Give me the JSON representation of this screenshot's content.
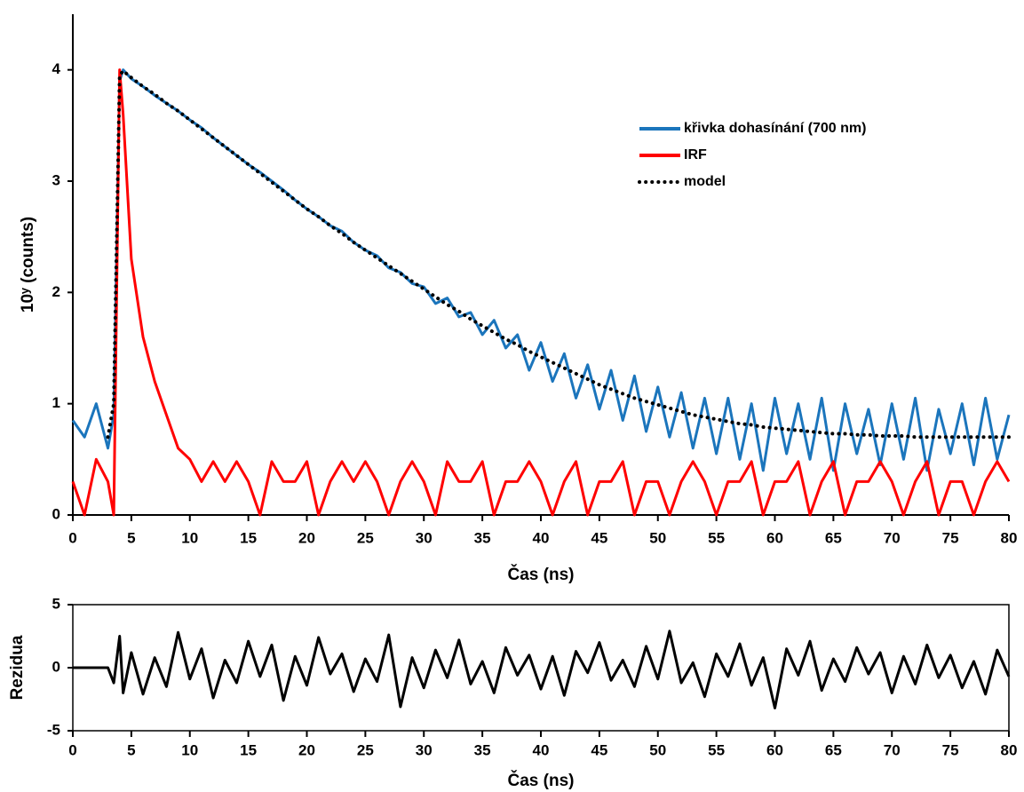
{
  "chart_data": [
    {
      "type": "line",
      "xlabel": "Čas (ns)",
      "ylabel": "10ʸ (counts)",
      "x": [
        0,
        1,
        2,
        3,
        3.5,
        4,
        4.3,
        5,
        6,
        7,
        8,
        9,
        10,
        11,
        12,
        13,
        14,
        15,
        16,
        17,
        18,
        19,
        20,
        21,
        22,
        23,
        24,
        25,
        26,
        27,
        28,
        29,
        30,
        31,
        32,
        33,
        34,
        35,
        36,
        37,
        38,
        39,
        40,
        41,
        42,
        43,
        44,
        45,
        46,
        47,
        48,
        49,
        50,
        51,
        52,
        53,
        54,
        55,
        56,
        57,
        58,
        59,
        60,
        61,
        62,
        63,
        64,
        65,
        66,
        67,
        68,
        69,
        70,
        71,
        72,
        73,
        74,
        75,
        76,
        77,
        78,
        79,
        80
      ],
      "xlim": [
        0,
        80
      ],
      "xticks": [
        0,
        5,
        10,
        15,
        20,
        25,
        30,
        35,
        40,
        45,
        50,
        55,
        60,
        65,
        70,
        75,
        80
      ],
      "ylim": [
        0,
        4.5
      ],
      "yticks": [
        0,
        1,
        2,
        3,
        4
      ],
      "grid": false,
      "frame": false,
      "legend": "upper right",
      "series": [
        {
          "name": "křivka dohasínání (700 nm)",
          "color": "#1b75bc",
          "style": "solid",
          "values": [
            0.85,
            0.7,
            1.0,
            0.6,
            0.9,
            3.9,
            4.0,
            3.92,
            3.85,
            3.77,
            3.7,
            3.63,
            3.55,
            3.48,
            3.39,
            3.31,
            3.23,
            3.15,
            3.08,
            3.0,
            2.92,
            2.83,
            2.75,
            2.68,
            2.6,
            2.55,
            2.45,
            2.38,
            2.33,
            2.22,
            2.18,
            2.08,
            2.05,
            1.9,
            1.95,
            1.78,
            1.82,
            1.62,
            1.75,
            1.5,
            1.62,
            1.3,
            1.55,
            1.2,
            1.45,
            1.05,
            1.35,
            0.95,
            1.3,
            0.85,
            1.25,
            0.75,
            1.15,
            0.7,
            1.1,
            0.6,
            1.05,
            0.55,
            1.05,
            0.5,
            1.0,
            0.4,
            1.05,
            0.55,
            1.0,
            0.5,
            1.05,
            0.4,
            1.0,
            0.55,
            0.95,
            0.45,
            1.0,
            0.5,
            1.05,
            0.4,
            0.95,
            0.55,
            1.0,
            0.45,
            1.05,
            0.5,
            0.9
          ]
        },
        {
          "name": "IRF",
          "color": "#ff0000",
          "style": "solid",
          "values": [
            0.3,
            0,
            0.5,
            0.3,
            0,
            4.0,
            3.6,
            2.3,
            1.6,
            1.2,
            0.9,
            0.6,
            0.5,
            0.3,
            0.48,
            0.3,
            0.48,
            0.3,
            0,
            0.48,
            0.3,
            0.3,
            0.48,
            0,
            0.3,
            0.48,
            0.3,
            0.48,
            0.3,
            0,
            0.3,
            0.48,
            0.3,
            0,
            0.48,
            0.3,
            0.3,
            0.48,
            0,
            0.3,
            0.3,
            0.48,
            0.3,
            0,
            0.3,
            0.48,
            0,
            0.3,
            0.3,
            0.48,
            0,
            0.3,
            0.3,
            0,
            0.3,
            0.48,
            0.3,
            0,
            0.3,
            0.3,
            0.48,
            0,
            0.3,
            0.3,
            0.48,
            0,
            0.3,
            0.48,
            0,
            0.3,
            0.3,
            0.48,
            0.3,
            0,
            0.3,
            0.48,
            0,
            0.3,
            0.3,
            0,
            0.3,
            0.48,
            0.3
          ]
        },
        {
          "name": "model",
          "color": "#000000",
          "style": "dotted",
          "values": [
            null,
            null,
            null,
            0.7,
            1.0,
            3.95,
            3.99,
            3.93,
            3.85,
            3.78,
            3.7,
            3.63,
            3.55,
            3.47,
            3.39,
            3.31,
            3.23,
            3.15,
            3.07,
            2.99,
            2.91,
            2.83,
            2.75,
            2.68,
            2.6,
            2.53,
            2.45,
            2.38,
            2.31,
            2.24,
            2.17,
            2.1,
            2.03,
            1.96,
            1.89,
            1.83,
            1.76,
            1.7,
            1.64,
            1.58,
            1.53,
            1.47,
            1.42,
            1.37,
            1.32,
            1.27,
            1.22,
            1.17,
            1.13,
            1.09,
            1.05,
            1.02,
            0.99,
            0.96,
            0.93,
            0.9,
            0.88,
            0.86,
            0.84,
            0.82,
            0.81,
            0.79,
            0.78,
            0.77,
            0.76,
            0.75,
            0.74,
            0.73,
            0.73,
            0.72,
            0.72,
            0.71,
            0.71,
            0.71,
            0.7,
            0.7,
            0.7,
            0.7,
            0.7,
            0.7,
            0.7,
            0.7,
            0.7
          ]
        }
      ]
    },
    {
      "type": "line",
      "xlabel": "Čas (ns)",
      "ylabel": "Rezidua",
      "x": [
        0,
        1,
        2,
        3,
        3.5,
        4,
        4.3,
        5,
        6,
        7,
        8,
        9,
        10,
        11,
        12,
        13,
        14,
        15,
        16,
        17,
        18,
        19,
        20,
        21,
        22,
        23,
        24,
        25,
        26,
        27,
        28,
        29,
        30,
        31,
        32,
        33,
        34,
        35,
        36,
        37,
        38,
        39,
        40,
        41,
        42,
        43,
        44,
        45,
        46,
        47,
        48,
        49,
        50,
        51,
        52,
        53,
        54,
        55,
        56,
        57,
        58,
        59,
        60,
        61,
        62,
        63,
        64,
        65,
        66,
        67,
        68,
        69,
        70,
        71,
        72,
        73,
        74,
        75,
        76,
        77,
        78,
        79,
        80
      ],
      "xlim": [
        0,
        80
      ],
      "xticks": [
        0,
        5,
        10,
        15,
        20,
        25,
        30,
        35,
        40,
        45,
        50,
        55,
        60,
        65,
        70,
        75,
        80
      ],
      "ylim": [
        -5,
        5
      ],
      "yticks": [
        -5,
        0,
        5
      ],
      "grid": false,
      "frame": true,
      "legend": false,
      "series": [
        {
          "color": "#000000",
          "style": "solid",
          "values": [
            0,
            0,
            0,
            0,
            -1.2,
            2.5,
            -2.0,
            1.2,
            -2.1,
            0.8,
            -1.5,
            2.8,
            -0.9,
            1.5,
            -2.4,
            0.6,
            -1.2,
            2.1,
            -0.7,
            1.8,
            -2.6,
            0.9,
            -1.4,
            2.4,
            -0.5,
            1.1,
            -1.9,
            0.7,
            -1.1,
            2.6,
            -3.1,
            0.8,
            -1.6,
            1.4,
            -0.8,
            2.2,
            -1.3,
            0.5,
            -2.0,
            1.6,
            -0.6,
            1.0,
            -1.7,
            0.9,
            -2.2,
            1.3,
            -0.4,
            2.0,
            -1.0,
            0.6,
            -1.5,
            1.7,
            -0.9,
            2.9,
            -1.2,
            0.4,
            -2.3,
            1.1,
            -0.7,
            1.9,
            -1.4,
            0.8,
            -3.2,
            1.5,
            -0.6,
            2.1,
            -1.8,
            0.7,
            -1.1,
            1.6,
            -0.5,
            1.2,
            -2.0,
            0.9,
            -1.3,
            1.8,
            -0.8,
            1.0,
            -1.6,
            0.5,
            -2.1,
            1.4,
            -0.7
          ]
        }
      ]
    }
  ]
}
